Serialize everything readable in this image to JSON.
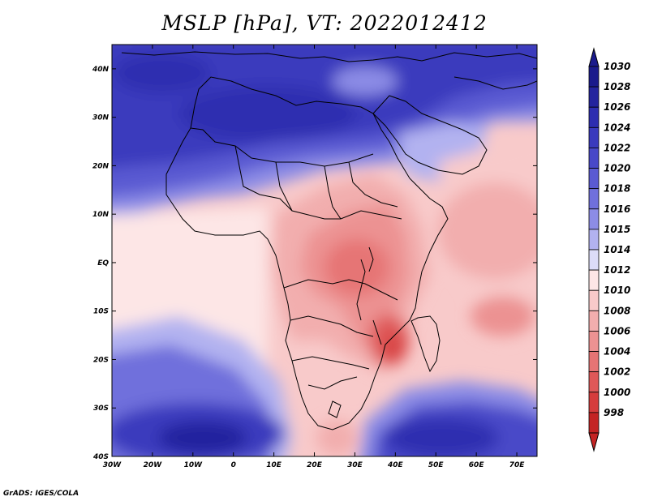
{
  "title": "MSLP [hPa], VT: 2022012412",
  "footer": "GrADS: IGES/COLA",
  "map": {
    "lon_range": [
      -30,
      75
    ],
    "lat_range": [
      -40,
      45
    ],
    "lon_ticks": [
      {
        "value": -30,
        "label": "30W"
      },
      {
        "value": -20,
        "label": "20W"
      },
      {
        "value": -10,
        "label": "10W"
      },
      {
        "value": 0,
        "label": "0"
      },
      {
        "value": 10,
        "label": "10E"
      },
      {
        "value": 20,
        "label": "20E"
      },
      {
        "value": 30,
        "label": "30E"
      },
      {
        "value": 40,
        "label": "40E"
      },
      {
        "value": 50,
        "label": "50E"
      },
      {
        "value": 60,
        "label": "60E"
      },
      {
        "value": 70,
        "label": "70E"
      }
    ],
    "lat_ticks": [
      {
        "value": 40,
        "label": "40N"
      },
      {
        "value": 30,
        "label": "30N"
      },
      {
        "value": 20,
        "label": "20N"
      },
      {
        "value": 10,
        "label": "10N"
      },
      {
        "value": 0,
        "label": "EQ"
      },
      {
        "value": -10,
        "label": "10S"
      },
      {
        "value": -20,
        "label": "20S"
      },
      {
        "value": -30,
        "label": "30S"
      },
      {
        "value": -40,
        "label": "40S"
      }
    ]
  },
  "colorbar": {
    "levels": [
      {
        "label": "1030",
        "color": "#1a1a8c"
      },
      {
        "label": "1028",
        "color": "#24249e"
      },
      {
        "label": "1026",
        "color": "#2e2eb0"
      },
      {
        "label": "1024",
        "color": "#3a3abd"
      },
      {
        "label": "1022",
        "color": "#4848c8"
      },
      {
        "label": "1020",
        "color": "#5a5ad2"
      },
      {
        "label": "1018",
        "color": "#7070dc"
      },
      {
        "label": "1016",
        "color": "#8c8ce6"
      },
      {
        "label": "1015",
        "color": "#b2b2f0"
      },
      {
        "label": "1014",
        "color": "#dcdcf8"
      },
      {
        "label": "1012",
        "color": "#fde6e6"
      },
      {
        "label": "1010",
        "color": "#f8caca"
      },
      {
        "label": "1008",
        "color": "#f2aeae"
      },
      {
        "label": "1006",
        "color": "#ec9292"
      },
      {
        "label": "1004",
        "color": "#e67474"
      },
      {
        "label": "1002",
        "color": "#df5858"
      },
      {
        "label": "1000",
        "color": "#d63c3c"
      },
      {
        "label": "998",
        "color": "#c42424"
      }
    ]
  }
}
